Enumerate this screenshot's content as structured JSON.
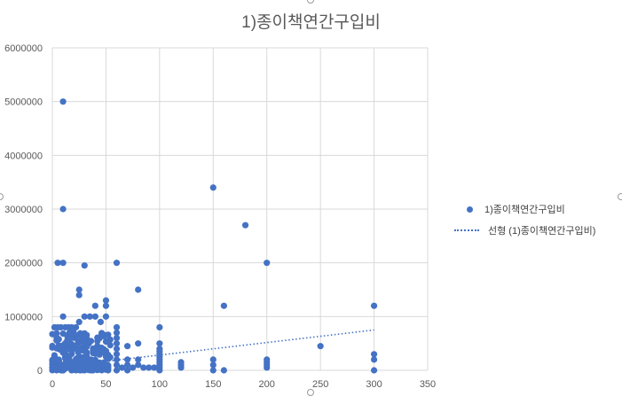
{
  "chart_data": {
    "type": "scatter",
    "title": "1)종이책연간구입비",
    "xlabel": "",
    "ylabel": "",
    "xlim": [
      0,
      350
    ],
    "ylim": [
      0,
      6000000
    ],
    "x_ticks": [
      0,
      50,
      100,
      150,
      200,
      250,
      300,
      350
    ],
    "y_ticks": [
      0,
      1000000,
      2000000,
      3000000,
      4000000,
      5000000,
      6000000
    ],
    "grid": true,
    "legend": "right",
    "series": [
      {
        "name": "1)종이책연간구입비",
        "color": "#4472c4",
        "points": [
          [
            10,
            5000000
          ],
          [
            10,
            3000000
          ],
          [
            150,
            3400000
          ],
          [
            180,
            2700000
          ],
          [
            5,
            2000000
          ],
          [
            10,
            2000000
          ],
          [
            30,
            1950000
          ],
          [
            60,
            2000000
          ],
          [
            200,
            2000000
          ],
          [
            160,
            1200000
          ],
          [
            300,
            1200000
          ],
          [
            80,
            1500000
          ],
          [
            25,
            1500000
          ],
          [
            25,
            1400000
          ],
          [
            40,
            1200000
          ],
          [
            50,
            1300000
          ],
          [
            50,
            1200000
          ],
          [
            2,
            800000
          ],
          [
            5,
            800000
          ],
          [
            8,
            800000
          ],
          [
            10,
            1000000
          ],
          [
            12,
            800000
          ],
          [
            15,
            800000
          ],
          [
            18,
            800000
          ],
          [
            20,
            700000
          ],
          [
            22,
            800000
          ],
          [
            25,
            900000
          ],
          [
            30,
            1000000
          ],
          [
            35,
            1000000
          ],
          [
            40,
            1000000
          ],
          [
            45,
            900000
          ],
          [
            50,
            1000000
          ],
          [
            100,
            800000
          ],
          [
            60,
            800000
          ],
          [
            60,
            700000
          ],
          [
            80,
            500000
          ],
          [
            70,
            450000
          ],
          [
            90,
            50000
          ],
          [
            95,
            50000
          ],
          [
            100,
            500000
          ],
          [
            100,
            400000
          ],
          [
            100,
            350000
          ],
          [
            100,
            300000
          ],
          [
            100,
            250000
          ],
          [
            100,
            200000
          ],
          [
            100,
            150000
          ],
          [
            100,
            100000
          ],
          [
            100,
            50000
          ],
          [
            100,
            0
          ],
          [
            120,
            150000
          ],
          [
            120,
            100000
          ],
          [
            120,
            50000
          ],
          [
            150,
            200000
          ],
          [
            150,
            100000
          ],
          [
            150,
            0
          ],
          [
            160,
            0
          ],
          [
            200,
            200000
          ],
          [
            200,
            150000
          ],
          [
            200,
            100000
          ],
          [
            200,
            50000
          ],
          [
            250,
            450000
          ],
          [
            300,
            300000
          ],
          [
            300,
            200000
          ],
          [
            300,
            0
          ],
          [
            60,
            600000
          ],
          [
            60,
            500000
          ],
          [
            60,
            400000
          ],
          [
            60,
            300000
          ],
          [
            60,
            200000
          ],
          [
            60,
            100000
          ],
          [
            60,
            0
          ],
          [
            70,
            200000
          ],
          [
            70,
            100000
          ],
          [
            70,
            0
          ],
          [
            80,
            200000
          ],
          [
            80,
            100000
          ],
          [
            85,
            50000
          ],
          [
            75,
            50000
          ],
          [
            65,
            50000
          ]
        ]
      }
    ],
    "trendline": {
      "name": "선형 (1)종이책연간구입비)",
      "style": "dotted",
      "color": "#4472c4",
      "x": [
        0,
        300
      ],
      "y": [
        50000,
        750000
      ]
    },
    "dense_cluster": {
      "x_range": [
        0,
        55
      ],
      "y_range": [
        0,
        700000
      ],
      "color": "#4472c4"
    }
  }
}
